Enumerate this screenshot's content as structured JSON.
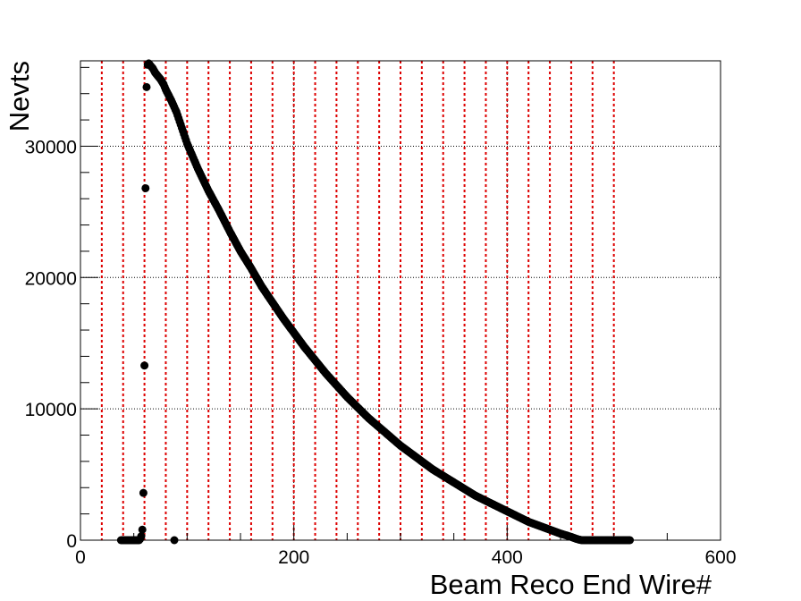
{
  "chart_data": {
    "type": "scatter",
    "title": "",
    "xlabel": "Beam Reco End Wire#",
    "ylabel": "Nevts",
    "xlim": [
      0,
      600
    ],
    "ylim": [
      0,
      36500
    ],
    "x_ticks": [
      0,
      200,
      400,
      600
    ],
    "x_tick_labels": [
      "0",
      "200",
      "400",
      "600"
    ],
    "y_ticks": [
      0,
      10000,
      20000,
      30000
    ],
    "y_tick_labels": [
      "0",
      "10000",
      "20000",
      "30000"
    ],
    "grid": "dotted",
    "marker_color": "#000000",
    "reference_line_color": "#dd0000",
    "reference_lines_x": [
      20,
      40,
      60,
      80,
      100,
      120,
      140,
      160,
      180,
      200,
      220,
      240,
      260,
      280,
      300,
      320,
      340,
      360,
      380,
      400,
      420,
      440,
      460,
      480,
      500
    ],
    "series": [
      {
        "name": "",
        "points": [
          [
            38,
            0
          ],
          [
            40,
            0
          ],
          [
            42,
            0
          ],
          [
            44,
            0
          ],
          [
            54,
            0
          ],
          [
            55,
            0
          ],
          [
            56,
            100
          ],
          [
            57,
            300
          ],
          [
            58,
            800
          ],
          [
            59,
            3600
          ],
          [
            60,
            13300
          ],
          [
            61,
            26800
          ],
          [
            62,
            34500
          ],
          [
            63,
            36200
          ],
          [
            64,
            36300
          ],
          [
            66,
            36100
          ],
          [
            68,
            35900
          ],
          [
            70,
            35600
          ],
          [
            72,
            35400
          ],
          [
            75,
            35100
          ],
          [
            78,
            34700
          ],
          [
            80,
            34300
          ],
          [
            85,
            33500
          ],
          [
            90,
            32600
          ],
          [
            95,
            31400
          ],
          [
            100,
            30200
          ],
          [
            110,
            28300
          ],
          [
            120,
            26600
          ],
          [
            130,
            25100
          ],
          [
            140,
            23500
          ],
          [
            150,
            22000
          ],
          [
            160,
            20700
          ],
          [
            170,
            19300
          ],
          [
            180,
            18100
          ],
          [
            190,
            16900
          ],
          [
            200,
            15800
          ],
          [
            210,
            14700
          ],
          [
            220,
            13700
          ],
          [
            230,
            12700
          ],
          [
            240,
            11800
          ],
          [
            250,
            10900
          ],
          [
            260,
            10100
          ],
          [
            270,
            9300
          ],
          [
            280,
            8600
          ],
          [
            290,
            7900
          ],
          [
            300,
            7200
          ],
          [
            310,
            6600
          ],
          [
            320,
            6000
          ],
          [
            330,
            5400
          ],
          [
            340,
            4900
          ],
          [
            350,
            4400
          ],
          [
            360,
            3900
          ],
          [
            370,
            3400
          ],
          [
            380,
            3000
          ],
          [
            390,
            2600
          ],
          [
            400,
            2200
          ],
          [
            410,
            1800
          ],
          [
            420,
            1400
          ],
          [
            430,
            1100
          ],
          [
            440,
            800
          ],
          [
            450,
            500
          ],
          [
            460,
            250
          ],
          [
            465,
            100
          ],
          [
            468,
            30
          ],
          [
            470,
            0
          ],
          [
            475,
            0
          ],
          [
            480,
            0
          ],
          [
            485,
            0
          ],
          [
            490,
            0
          ],
          [
            495,
            0
          ],
          [
            500,
            0
          ],
          [
            503,
            0
          ],
          [
            506,
            0
          ],
          [
            509,
            0
          ],
          [
            512,
            0
          ],
          [
            515,
            0
          ],
          [
            88,
            0
          ]
        ]
      }
    ]
  }
}
